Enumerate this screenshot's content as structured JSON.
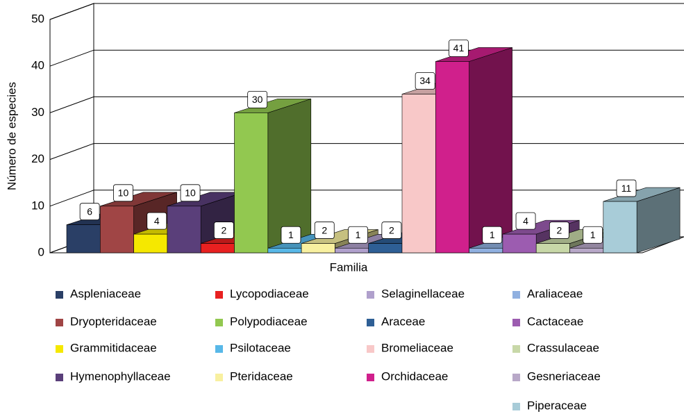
{
  "chart_data": {
    "type": "bar3d",
    "ylabel": "Número de especies",
    "xlabel": "Familia",
    "categories": [
      "Aspleniaceae",
      "Dryopteridaceae",
      "Grammitidaceae",
      "Hymenophyllaceae",
      "Lycopodiaceae",
      "Polypodiaceae",
      "Psilotaceae",
      "Pteridaceae",
      "Selaginellaceae",
      "Araceae",
      "Bromeliaceae",
      "Orchidaceae",
      "Araliaceae",
      "Cactaceae",
      "Crassulaceae",
      "Gesneriaceae",
      "Piperaceae"
    ],
    "values": [
      6,
      10,
      4,
      10,
      2,
      30,
      1,
      2,
      1,
      2,
      34,
      41,
      1,
      4,
      2,
      1,
      11
    ],
    "colors": [
      "#2a3f66",
      "#a04545",
      "#f5e800",
      "#5a3f7a",
      "#e82020",
      "#92c850",
      "#58b8e8",
      "#f8f0a0",
      "#b0a0cc",
      "#2e5f95",
      "#f8c8c8",
      "#d0208c",
      "#90b0e0",
      "#9c5cb0",
      "#c8d8a8",
      "#b8a8c8",
      "#a8ccd8"
    ],
    "ylim": [
      0,
      50
    ],
    "yticks": [
      0,
      10,
      20,
      30,
      40,
      50
    ],
    "grid": true
  }
}
